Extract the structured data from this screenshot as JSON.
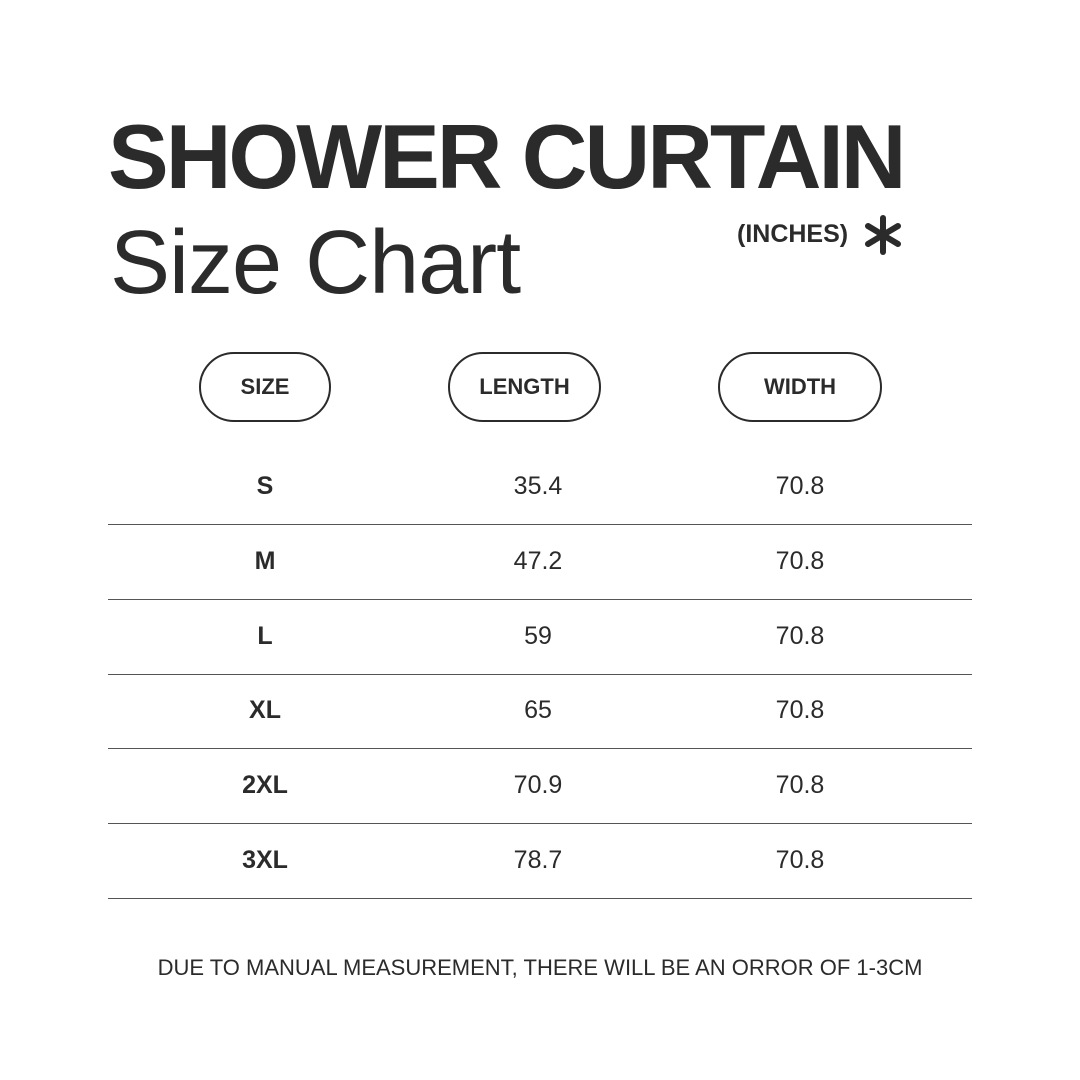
{
  "header": {
    "title": "SHOWER CURTAIN",
    "subtitle": "Size Chart",
    "unit": "(INCHES)",
    "unit_icon": "asterisk-icon"
  },
  "table": {
    "columns": [
      "SIZE",
      "LENGTH",
      "WIDTH"
    ],
    "rows": [
      [
        "S",
        "35.4",
        "70.8"
      ],
      [
        "M",
        "47.2",
        "70.8"
      ],
      [
        "L",
        "59",
        "70.8"
      ],
      [
        "XL",
        "65",
        "70.8"
      ],
      [
        "2XL",
        "70.9",
        "70.8"
      ],
      [
        "3XL",
        "78.7",
        "70.8"
      ]
    ]
  },
  "footer": {
    "note": "DUE TO MANUAL MEASUREMENT, THERE WILL BE AN ORROR OF 1-3CM"
  },
  "colors": {
    "text": "#2b2b2b",
    "background": "#ffffff"
  }
}
